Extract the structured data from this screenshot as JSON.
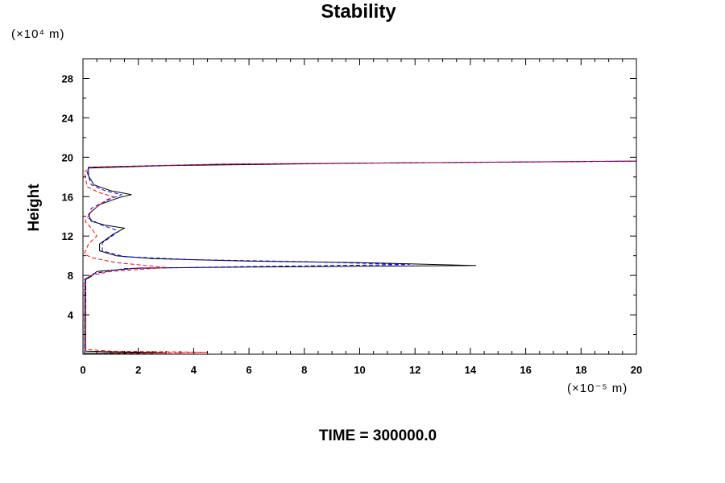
{
  "chart_data": {
    "type": "line",
    "title": "Stability",
    "xlabel": "",
    "ylabel": "Height",
    "x_unit_label": "(×10⁻⁵ m)",
    "y_unit_label": "(×10⁴ m)",
    "footer": "TIME = 300000.0",
    "xlim": [
      0,
      20
    ],
    "ylim": [
      0,
      30
    ],
    "xticks": [
      0,
      2,
      4,
      6,
      8,
      10,
      12,
      14,
      16,
      18,
      20
    ],
    "yticks": [
      4,
      8,
      12,
      16,
      20,
      24,
      28
    ],
    "grid": false,
    "legend": "none",
    "series": [
      {
        "color": "#000000",
        "style": "solid",
        "points": [
          [
            0.05,
            0.1
          ],
          [
            1.0,
            0.12
          ],
          [
            3.0,
            0.15
          ],
          [
            0.1,
            0.3
          ],
          [
            0.1,
            4
          ],
          [
            0.1,
            7.6
          ],
          [
            0.3,
            7.9
          ],
          [
            0.5,
            8.4
          ],
          [
            2.0,
            8.75
          ],
          [
            6.0,
            8.85
          ],
          [
            14.2,
            9.0
          ],
          [
            10.0,
            9.3
          ],
          [
            6.0,
            9.45
          ],
          [
            2.5,
            9.7
          ],
          [
            1.2,
            10.0
          ],
          [
            0.6,
            10.5
          ],
          [
            0.6,
            11.2
          ],
          [
            1.1,
            12.2
          ],
          [
            1.5,
            12.8
          ],
          [
            0.8,
            13.1
          ],
          [
            0.3,
            13.5
          ],
          [
            0.2,
            14.2
          ],
          [
            0.6,
            15.2
          ],
          [
            1.3,
            15.9
          ],
          [
            1.75,
            16.2
          ],
          [
            1.0,
            16.6
          ],
          [
            0.4,
            17.2
          ],
          [
            0.2,
            18.1
          ],
          [
            0.2,
            18.9
          ],
          [
            3.0,
            19.15
          ],
          [
            10.0,
            19.4
          ],
          [
            20.0,
            19.6
          ]
        ]
      },
      {
        "color": "#0000ff",
        "style": "dashed",
        "points": [
          [
            0.05,
            0.0
          ],
          [
            0.05,
            3.5
          ],
          [
            0.08,
            7.6
          ],
          [
            0.4,
            8.2
          ],
          [
            1.5,
            8.7
          ],
          [
            6.0,
            8.9
          ],
          [
            11.8,
            9.1
          ],
          [
            8.0,
            9.4
          ],
          [
            4.0,
            9.6
          ],
          [
            1.5,
            9.9
          ],
          [
            0.7,
            10.5
          ],
          [
            0.7,
            11.3
          ],
          [
            1.3,
            12.5
          ],
          [
            0.6,
            13.2
          ],
          [
            0.2,
            13.8
          ],
          [
            0.3,
            14.8
          ],
          [
            1.0,
            15.8
          ],
          [
            1.4,
            16.2
          ],
          [
            0.8,
            16.6
          ],
          [
            0.3,
            17.2
          ],
          [
            0.15,
            18.5
          ],
          [
            0.2,
            19.0
          ],
          [
            5.0,
            19.3
          ],
          [
            20.0,
            19.6
          ]
        ]
      },
      {
        "color": "#0000ff",
        "style": "dashed",
        "points": [
          [
            0.0,
            29.5
          ],
          [
            0.0,
            30.0
          ]
        ]
      },
      {
        "color": "#ff0000",
        "style": "dashed",
        "points": [
          [
            0.05,
            0.0
          ],
          [
            2.0,
            0.08
          ],
          [
            4.5,
            0.2
          ],
          [
            1.0,
            0.3
          ],
          [
            0.05,
            0.5
          ],
          [
            0.05,
            7.6
          ],
          [
            0.3,
            8.0
          ],
          [
            1.0,
            8.4
          ],
          [
            3.0,
            8.8
          ],
          [
            1.2,
            9.3
          ],
          [
            0.3,
            9.8
          ],
          [
            0.05,
            10.2
          ],
          [
            0.2,
            11.2
          ],
          [
            0.5,
            12.0
          ],
          [
            0.3,
            12.8
          ],
          [
            0.08,
            13.5
          ],
          [
            0.3,
            14.5
          ],
          [
            0.8,
            15.6
          ],
          [
            1.1,
            16.0
          ],
          [
            0.6,
            16.4
          ],
          [
            0.15,
            17.0
          ],
          [
            0.05,
            18.5
          ],
          [
            0.3,
            19.0
          ],
          [
            5.0,
            19.3
          ],
          [
            20.0,
            19.62
          ]
        ]
      }
    ]
  }
}
